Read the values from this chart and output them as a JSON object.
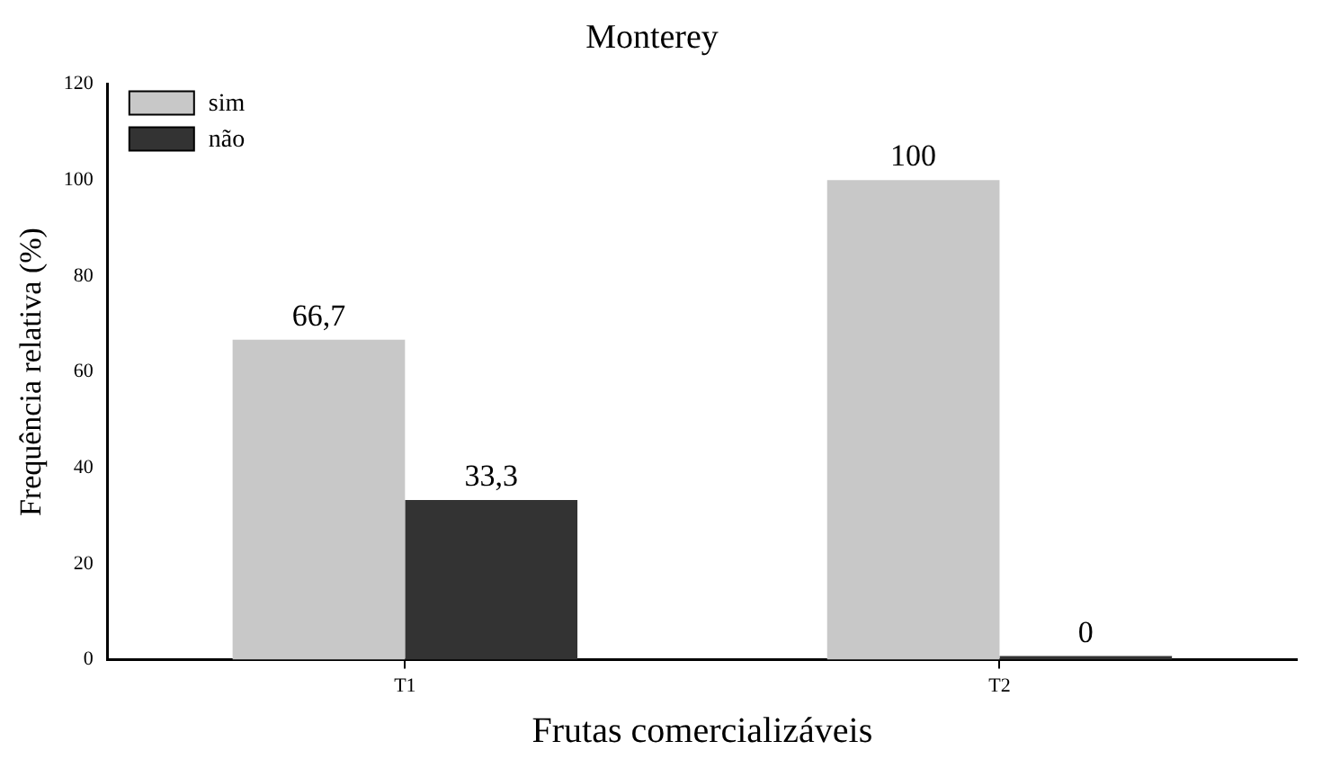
{
  "chart_data": {
    "type": "bar",
    "title": "Monterey",
    "xlabel": "Frutas comercializáveis",
    "ylabel": "Frequência relativa (%)",
    "categories": [
      "T1",
      "T2"
    ],
    "series": [
      {
        "name": "sim",
        "color": "#c8c8c8",
        "values": [
          66.7,
          100
        ],
        "value_labels": [
          "66,7",
          "100"
        ]
      },
      {
        "name": "não",
        "color": "#333333",
        "values": [
          33.3,
          0
        ],
        "value_labels": [
          "33,3",
          "0"
        ]
      }
    ],
    "ylim": [
      0,
      120
    ],
    "yticks": [
      0,
      20,
      40,
      60,
      80,
      100,
      120
    ],
    "grid": false,
    "legend": "top left"
  }
}
